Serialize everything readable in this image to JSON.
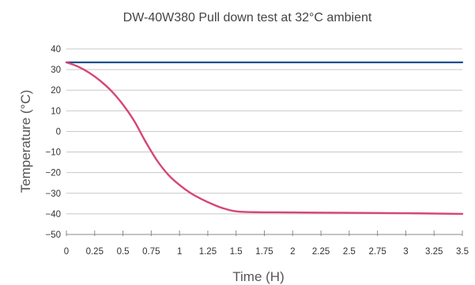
{
  "chart_data": {
    "type": "line",
    "title": "DW-40W380 Pull down test at 32°C ambient",
    "xlabel": "Time (H)",
    "ylabel": "Temperature (°C)",
    "xlim": [
      0,
      3.5
    ],
    "ylim": [
      -50,
      40
    ],
    "x_ticks": [
      0,
      0.25,
      0.5,
      0.75,
      1,
      1.25,
      1.5,
      1.75,
      2,
      2.25,
      2.5,
      2.75,
      3,
      3.25,
      3.5
    ],
    "x_tick_labels": [
      "0",
      "0.25",
      "0.5",
      "0.75",
      "1",
      "1.25",
      "1.5",
      "1.75",
      "2",
      "2.25",
      "2.5",
      "2.75",
      "3",
      "3.25",
      "3.5"
    ],
    "y_ticks": [
      40,
      30,
      20,
      10,
      0,
      -10,
      -20,
      -30,
      -40,
      -50
    ],
    "y_tick_labels": [
      "40",
      "30",
      "20",
      "10",
      "0",
      "−10",
      "−20",
      "−30",
      "−40",
      "−50"
    ],
    "grid": "horizontal",
    "legend": "none",
    "series": [
      {
        "color": "#1f4e8c",
        "x": [
          0,
          3.5
        ],
        "y": [
          33.5,
          33.5
        ]
      },
      {
        "color": "#d6457a",
        "x": [
          0,
          0.1,
          0.2,
          0.3,
          0.4,
          0.5,
          0.6,
          0.7,
          0.8,
          0.9,
          1.0,
          1.1,
          1.2,
          1.3,
          1.4,
          1.55,
          2.0,
          2.5,
          3.0,
          3.5
        ],
        "y": [
          33.5,
          31.5,
          28.5,
          24.5,
          19.5,
          13,
          5,
          -5,
          -14,
          -21,
          -26,
          -30,
          -33,
          -35.5,
          -37.5,
          -39,
          -39.3,
          -39.5,
          -39.7,
          -40
        ]
      }
    ]
  }
}
